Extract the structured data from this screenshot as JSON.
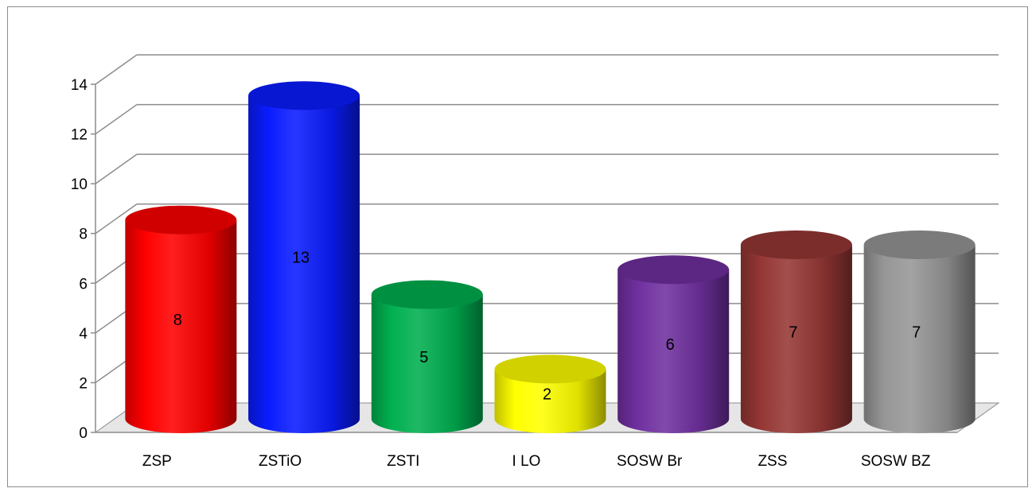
{
  "chart_data": {
    "type": "bar",
    "style": "3d-cylinder",
    "categories": [
      "ZSP",
      "ZSTiO",
      "ZSTI",
      "I LO",
      "SOSW Br",
      "ZSS",
      "SOSW BZ"
    ],
    "values": [
      8,
      13,
      5,
      2,
      6,
      7,
      7
    ],
    "series_colors": [
      "#ff0000",
      "#0a1cff",
      "#00b050",
      "#ffff00",
      "#7030a0",
      "#953735",
      "#969696"
    ],
    "ylim": [
      0,
      14
    ],
    "yticks": [
      0,
      2,
      4,
      6,
      8,
      10,
      12,
      14
    ],
    "ytick_labels": [
      "0",
      "2",
      "4",
      "6",
      "8",
      "10",
      "12",
      "14"
    ],
    "data_labels": [
      "8",
      "13",
      "5",
      "2",
      "6",
      "7",
      "7"
    ],
    "grid": true,
    "legend": "none",
    "title": "",
    "xlabel": "",
    "ylabel": ""
  }
}
